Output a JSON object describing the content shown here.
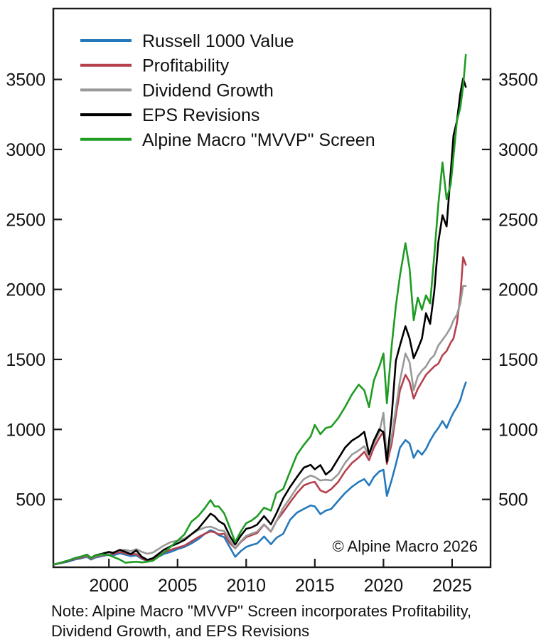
{
  "figure": {
    "copyright": "© Alpine Macro 2026",
    "note_line1": "Note: Alpine Macro \"MVVP\" Screen incorporates Profitability,",
    "note_line2": "Dividend Growth, and EPS Revisions"
  },
  "chart_data": {
    "type": "line",
    "title": "",
    "xlabel": "",
    "ylabel": "",
    "grid": false,
    "legend_position": "top-left",
    "xlim": [
      1995.95,
      2027.8
    ],
    "ylim": [
      0,
      4000
    ],
    "x_ticks": [
      2000,
      2005,
      2010,
      2015,
      2020,
      2025
    ],
    "y_ticks": [
      500,
      1000,
      1500,
      2000,
      2500,
      3000,
      3500
    ],
    "x": [
      1996.0,
      1996.5,
      1997.0,
      1997.5,
      1998.0,
      1998.4,
      1998.7,
      1999.0,
      1999.5,
      2000.0,
      2000.3,
      2000.8,
      2001.2,
      2001.6,
      2002.0,
      2002.4,
      2002.8,
      2003.2,
      2003.6,
      2004.0,
      2004.5,
      2005.0,
      2005.5,
      2006.0,
      2006.5,
      2007.0,
      2007.4,
      2007.7,
      2008.0,
      2008.4,
      2008.8,
      2009.2,
      2009.6,
      2010.0,
      2010.4,
      2010.8,
      2011.3,
      2011.8,
      2012.2,
      2012.7,
      2013.2,
      2013.7,
      2014.2,
      2014.7,
      2015.0,
      2015.4,
      2015.8,
      2016.2,
      2016.7,
      2017.2,
      2017.7,
      2018.2,
      2018.6,
      2018.95,
      2019.3,
      2019.7,
      2020.0,
      2020.25,
      2020.6,
      2020.9,
      2021.2,
      2021.6,
      2021.9,
      2022.2,
      2022.5,
      2022.8,
      2023.1,
      2023.4,
      2023.7,
      2024.0,
      2024.3,
      2024.6,
      2024.9,
      2025.1,
      2025.35,
      2025.6,
      2025.8,
      2026.0
    ],
    "series": [
      {
        "name": "Russell 1000 Value",
        "color": "#2479bd",
        "values": [
          35,
          45,
          55,
          70,
          80,
          90,
          70,
          85,
          95,
          105,
          100,
          115,
          105,
          95,
          100,
          75,
          60,
          65,
          90,
          110,
          125,
          145,
          160,
          185,
          215,
          255,
          280,
          268,
          245,
          230,
          160,
          90,
          130,
          160,
          175,
          185,
          235,
          180,
          225,
          255,
          355,
          405,
          432,
          457,
          450,
          395,
          420,
          432,
          490,
          545,
          590,
          625,
          645,
          600,
          660,
          700,
          712,
          525,
          640,
          750,
          870,
          924,
          900,
          797,
          850,
          820,
          860,
          920,
          970,
          1010,
          1060,
          1010,
          1080,
          1120,
          1160,
          1210,
          1280,
          1335
        ]
      },
      {
        "name": "Profitability",
        "color": "#b5414c",
        "values": [
          35,
          46,
          60,
          75,
          85,
          95,
          75,
          90,
          100,
          115,
          110,
          125,
          115,
          105,
          110,
          80,
          62,
          70,
          95,
          120,
          140,
          155,
          170,
          200,
          230,
          255,
          271,
          265,
          250,
          255,
          190,
          150,
          195,
          230,
          245,
          260,
          320,
          270,
          345,
          410,
          480,
          545,
          600,
          620,
          625,
          565,
          548,
          575,
          625,
          700,
          760,
          800,
          840,
          780,
          870,
          940,
          985,
          754,
          900,
          1100,
          1280,
          1390,
          1340,
          1220,
          1290,
          1340,
          1390,
          1420,
          1450,
          1470,
          1530,
          1560,
          1620,
          1650,
          1760,
          1950,
          2230,
          2175
        ]
      },
      {
        "name": "Dividend Growth",
        "color": "#999999",
        "values": [
          35,
          48,
          62,
          78,
          90,
          100,
          80,
          95,
          105,
          115,
          120,
          135,
          140,
          130,
          145,
          125,
          112,
          120,
          145,
          170,
          195,
          205,
          220,
          250,
          280,
          300,
          305,
          295,
          280,
          275,
          210,
          152,
          200,
          240,
          255,
          270,
          322,
          272,
          345,
          440,
          510,
          585,
          645,
          671,
          660,
          635,
          640,
          635,
          680,
          760,
          820,
          850,
          880,
          810,
          900,
          980,
          1118,
          779,
          950,
          1150,
          1350,
          1542,
          1480,
          1280,
          1380,
          1420,
          1450,
          1500,
          1530,
          1600,
          1640,
          1680,
          1730,
          1780,
          1820,
          1900,
          2025,
          2025
        ]
      },
      {
        "name": "EPS Revisions",
        "color": "#000000",
        "values": [
          35,
          48,
          62,
          80,
          92,
          105,
          82,
          100,
          112,
          125,
          118,
          140,
          125,
          110,
          135,
          90,
          68,
          80,
          110,
          140,
          165,
          185,
          210,
          250,
          290,
          350,
          398,
          380,
          345,
          322,
          240,
          178,
          240,
          290,
          300,
          320,
          381,
          322,
          400,
          508,
          590,
          660,
          727,
          747,
          715,
          745,
          678,
          710,
          790,
          870,
          920,
          950,
          983,
          823,
          920,
          1001,
          980,
          771,
          1100,
          1491,
          1600,
          1737,
          1650,
          1509,
          1576,
          1650,
          1830,
          1754,
          1983,
          2340,
          2530,
          2450,
          2838,
          3100,
          3203,
          3400,
          3507,
          3447
        ]
      },
      {
        "name": "Alpine Macro \"MVVP\" Screen",
        "color": "#1f9c23",
        "values": [
          35,
          48,
          62,
          80,
          92,
          105,
          80,
          98,
          108,
          102,
          90,
          70,
          48,
          52,
          55,
          50,
          55,
          62,
          90,
          120,
          162,
          205,
          250,
          340,
          380,
          440,
          495,
          450,
          450,
          400,
          300,
          195,
          270,
          330,
          350,
          380,
          441,
          420,
          545,
          575,
          700,
          820,
          890,
          950,
          1032,
          966,
          1010,
          1020,
          1080,
          1160,
          1250,
          1320,
          1280,
          1160,
          1350,
          1450,
          1542,
          1186,
          1600,
          1881,
          2100,
          2330,
          2150,
          1780,
          1942,
          1855,
          1958,
          1900,
          2240,
          2611,
          2907,
          2644,
          2750,
          2950,
          3203,
          3300,
          3450,
          3676
        ]
      }
    ]
  }
}
